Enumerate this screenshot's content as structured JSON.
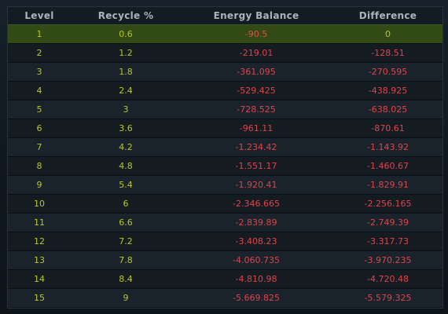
{
  "columns": {
    "level": "Level",
    "recycle": "Recycle %",
    "energy": "Energy Balance",
    "difference": "Difference"
  },
  "rows": [
    {
      "level": "1",
      "recycle": "0.6",
      "energy": "-90.5",
      "difference": "0"
    },
    {
      "level": "2",
      "recycle": "1.2",
      "energy": "-219.01",
      "difference": "-128.51"
    },
    {
      "level": "3",
      "recycle": "1.8",
      "energy": "-361.095",
      "difference": "-270.595"
    },
    {
      "level": "4",
      "recycle": "2.4",
      "energy": "-529.425",
      "difference": "-438.925"
    },
    {
      "level": "5",
      "recycle": "3",
      "energy": "-728.525",
      "difference": "-638.025"
    },
    {
      "level": "6",
      "recycle": "3.6",
      "energy": "-961.11",
      "difference": "-870.61"
    },
    {
      "level": "7",
      "recycle": "4.2",
      "energy": "-1.234.42",
      "difference": "-1.143.92"
    },
    {
      "level": "8",
      "recycle": "4.8",
      "energy": "-1.551.17",
      "difference": "-1.460.67"
    },
    {
      "level": "9",
      "recycle": "5.4",
      "energy": "-1.920.41",
      "difference": "-1.829.91"
    },
    {
      "level": "10",
      "recycle": "6",
      "energy": "-2.346.665",
      "difference": "-2.256.165"
    },
    {
      "level": "11",
      "recycle": "6.6",
      "energy": "-2.839.89",
      "difference": "-2.749.39"
    },
    {
      "level": "12",
      "recycle": "7.2",
      "energy": "-3.408.23",
      "difference": "-3.317.73"
    },
    {
      "level": "13",
      "recycle": "7.8",
      "energy": "-4.060.735",
      "difference": "-3.970.235"
    },
    {
      "level": "14",
      "recycle": "8.4",
      "energy": "-4.810.98",
      "difference": "-4.720.48"
    },
    {
      "level": "15",
      "recycle": "9",
      "energy": "-5.669.825",
      "difference": "-5.579.325"
    }
  ],
  "selected_level": "1",
  "colors": {
    "level_text": "#b6c81e",
    "negative_text": "#e0434a",
    "selected_row_bg": "#324a16",
    "header_text": "#aab4bc"
  }
}
